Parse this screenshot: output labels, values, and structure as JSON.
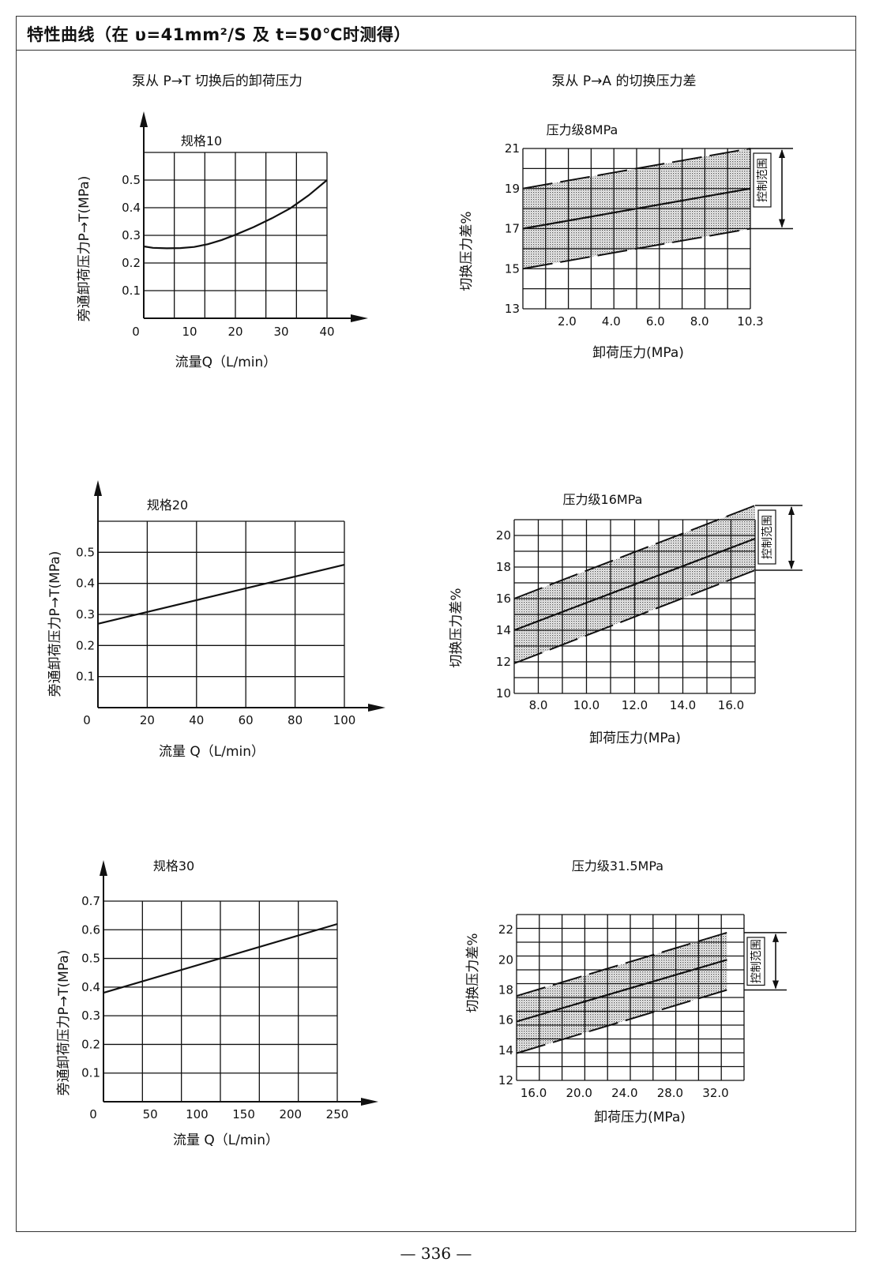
{
  "page": {
    "title": "特性曲线（在 υ=41mm²/S 及 t=50℃时测得）",
    "page_number": "— 336 —"
  },
  "chart_data": [
    {
      "id": "bypass-10",
      "type": "line",
      "title": "泵从 P→T 切换后的卸荷压力",
      "subtitle": "规格10",
      "xlabel": "流量Q（L/min）",
      "ylabel": "旁通卸荷压力P→T(MPa)",
      "xlim": [
        0,
        40
      ],
      "ylim": [
        0,
        0.6
      ],
      "x_ticks": [
        0,
        10,
        20,
        30,
        40
      ],
      "x_tick_labels": [
        "0",
        "10",
        "20",
        "30",
        "40"
      ],
      "y_ticks": [
        0.1,
        0.2,
        0.3,
        0.4,
        0.5
      ],
      "y_tick_labels": [
        "0.1",
        "0.2",
        "0.3",
        "0.4",
        "0.5"
      ],
      "grid": true,
      "series": [
        {
          "x": [
            0,
            2,
            5,
            8,
            11,
            14,
            17,
            20,
            24,
            28,
            32,
            36,
            40
          ],
          "y": [
            0.26,
            0.255,
            0.253,
            0.254,
            0.258,
            0.268,
            0.283,
            0.302,
            0.33,
            0.362,
            0.398,
            0.445,
            0.5
          ]
        }
      ]
    },
    {
      "id": "switch-8",
      "type": "area",
      "title": "泵从 P→A 的切换压力差",
      "subtitle": "压力级8MPa",
      "xlabel": "卸荷压力(MPa)",
      "ylabel": "切换压力差%",
      "range_label": "控制范围",
      "xlim": [
        0,
        10.3
      ],
      "ylim": [
        13,
        21
      ],
      "x_ticks": [
        2,
        4,
        6,
        8,
        10.3
      ],
      "x_tick_labels": [
        "2.0",
        "4.0",
        "6.0",
        "8.0",
        "10.3"
      ],
      "y_ticks": [
        13,
        15,
        17,
        19,
        21
      ],
      "y_tick_labels": [
        "13",
        "15",
        "17",
        "19",
        "21"
      ],
      "grid": true,
      "series": [
        {
          "x": [
            0,
            10.3
          ],
          "y": [
            17,
            19
          ]
        }
      ],
      "band": {
        "x": [
          0,
          10.3
        ],
        "upper": [
          19,
          21
        ],
        "lower": [
          15,
          17
        ]
      },
      "range": [
        17,
        21
      ]
    },
    {
      "id": "bypass-20",
      "type": "line",
      "subtitle": "规格20",
      "xlabel": "流量 Q（L/min）",
      "ylabel": "旁通卸荷压力P→T(MPa)",
      "xlim": [
        0,
        100
      ],
      "ylim": [
        0,
        0.6
      ],
      "x_ticks": [
        0,
        20,
        40,
        60,
        80,
        100
      ],
      "x_tick_labels": [
        "0",
        "20",
        "40",
        "60",
        "80",
        "100"
      ],
      "y_ticks": [
        0.1,
        0.2,
        0.3,
        0.4,
        0.5
      ],
      "y_tick_labels": [
        "0.1",
        "0.2",
        "0.3",
        "0.4",
        "0.5"
      ],
      "grid": true,
      "series": [
        {
          "x": [
            0,
            100
          ],
          "y": [
            0.27,
            0.46
          ]
        }
      ]
    },
    {
      "id": "switch-16",
      "type": "area",
      "subtitle": "压力级16MPa",
      "xlabel": "卸荷压力(MPa)",
      "ylabel": "切换压力差%",
      "range_label": "控制范围",
      "xlim": [
        7,
        17
      ],
      "ylim": [
        10,
        21
      ],
      "x_ticks": [
        8,
        10,
        12,
        14,
        16
      ],
      "x_tick_labels": [
        "8.0",
        "10.0",
        "12.0",
        "14.0",
        "16.0"
      ],
      "y_ticks": [
        10,
        12,
        14,
        16,
        18,
        20
      ],
      "y_tick_labels": [
        "10",
        "12",
        "14",
        "16",
        "18",
        "20"
      ],
      "grid": true,
      "series": [
        {
          "x": [
            7,
            17
          ],
          "y": [
            14,
            19.8
          ]
        }
      ],
      "band": {
        "x": [
          7,
          17
        ],
        "upper": [
          16,
          21.9
        ],
        "lower": [
          11.9,
          17.8
        ]
      },
      "range": [
        17.8,
        21.9
      ]
    },
    {
      "id": "bypass-30",
      "type": "line",
      "subtitle": "规格30",
      "xlabel": "流量 Q（L/min）",
      "ylabel": "旁通卸荷压力P→T(MPa)",
      "xlim": [
        0,
        250
      ],
      "ylim": [
        0,
        0.7
      ],
      "x_ticks": [
        0,
        50,
        100,
        150,
        200,
        250
      ],
      "x_tick_labels": [
        "0",
        "50",
        "100",
        "150",
        "200",
        "250"
      ],
      "y_ticks": [
        0.1,
        0.2,
        0.3,
        0.4,
        0.5,
        0.6,
        0.7
      ],
      "y_tick_labels": [
        "0.1",
        "0.2",
        "0.3",
        "0.4",
        "0.5",
        "0.6",
        "0.7"
      ],
      "grid": true,
      "series": [
        {
          "x": [
            0,
            250
          ],
          "y": [
            0.38,
            0.62
          ]
        }
      ]
    },
    {
      "id": "switch-31",
      "type": "area",
      "subtitle": "压力级31.5MPa",
      "xlabel": "卸荷压力(MPa)",
      "ylabel": "切换压力差%",
      "range_label": "控制范围",
      "xlim": [
        14.5,
        34.5
      ],
      "ylim": [
        12,
        23
      ],
      "x_ticks": [
        16,
        20,
        24,
        28,
        32
      ],
      "x_tick_labels": [
        "16.0",
        "20.0",
        "24.0",
        "28.0",
        "32.0"
      ],
      "y_ticks": [
        12,
        14,
        16,
        18,
        20,
        22
      ],
      "y_tick_labels": [
        "12",
        "14",
        "16",
        "18",
        "20",
        "22"
      ],
      "grid": true,
      "series": [
        {
          "x": [
            14.5,
            33
          ],
          "y": [
            15.9,
            20
          ]
        }
      ],
      "band": {
        "x": [
          14.5,
          33
        ],
        "upper": [
          17.6,
          21.8
        ],
        "lower": [
          13.8,
          18
        ]
      },
      "range": [
        18,
        21.8
      ]
    }
  ]
}
